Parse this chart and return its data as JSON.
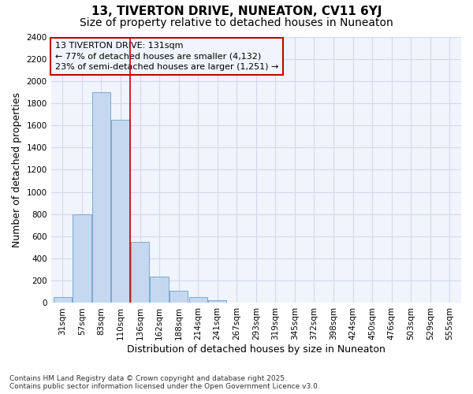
{
  "title": "13, TIVERTON DRIVE, NUNEATON, CV11 6YJ",
  "subtitle": "Size of property relative to detached houses in Nuneaton",
  "xlabel": "Distribution of detached houses by size in Nuneaton",
  "ylabel": "Number of detached properties",
  "footer_line1": "Contains HM Land Registry data © Crown copyright and database right 2025.",
  "footer_line2": "Contains public sector information licensed under the Open Government Licence v3.0.",
  "categories": [
    "31sqm",
    "57sqm",
    "83sqm",
    "110sqm",
    "136sqm",
    "162sqm",
    "188sqm",
    "214sqm",
    "241sqm",
    "267sqm",
    "293sqm",
    "319sqm",
    "345sqm",
    "372sqm",
    "398sqm",
    "424sqm",
    "450sqm",
    "476sqm",
    "503sqm",
    "529sqm",
    "555sqm"
  ],
  "values": [
    50,
    800,
    1900,
    1650,
    550,
    240,
    110,
    50,
    25,
    0,
    0,
    0,
    0,
    0,
    0,
    0,
    0,
    0,
    0,
    0,
    0
  ],
  "bar_color": "#c5d8f0",
  "bar_edge_color": "#7aaad0",
  "grid_color": "#d0daea",
  "background_color": "#ffffff",
  "plot_bg_color": "#f0f4fc",
  "vline_color": "#cc0000",
  "vline_x_index": 4,
  "annotation_title": "13 TIVERTON DRIVE: 131sqm",
  "annotation_line1": "← 77% of detached houses are smaller (4,132)",
  "annotation_line2": "23% of semi-detached houses are larger (1,251) →",
  "annotation_box_color": "#cc0000",
  "ylim": [
    0,
    2400
  ],
  "yticks": [
    0,
    200,
    400,
    600,
    800,
    1000,
    1200,
    1400,
    1600,
    1800,
    2000,
    2200,
    2400
  ],
  "title_fontsize": 11,
  "subtitle_fontsize": 10,
  "tick_fontsize": 7.5,
  "ylabel_fontsize": 9,
  "xlabel_fontsize": 9,
  "annotation_fontsize": 8
}
